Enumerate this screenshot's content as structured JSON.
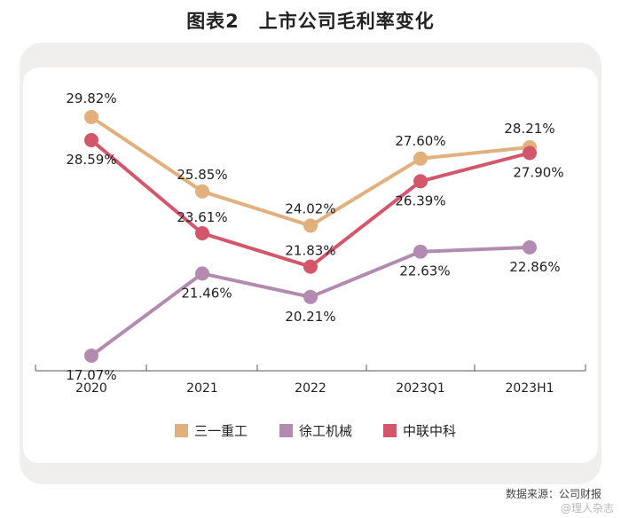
{
  "title": "图表2　上市公司毛利率变化",
  "source": "数据来源：公司财报",
  "watermark": "@理人杂志",
  "chart_data": {
    "type": "line",
    "categories": [
      "2020",
      "2021",
      "2022",
      "2023Q1",
      "2023H1"
    ],
    "ylim": [
      15,
      32
    ],
    "grid": false,
    "legend_position": "bottom-center",
    "series": [
      {
        "name": "三一重工",
        "color": "#e2b07c",
        "values": [
          29.82,
          25.85,
          24.02,
          27.6,
          28.21
        ],
        "labels": [
          "29.82%",
          "25.85%",
          "24.02%",
          "27.60%",
          "28.21%"
        ]
      },
      {
        "name": "徐工机械",
        "color": "#b48bb0",
        "values": [
          17.07,
          21.46,
          20.21,
          22.63,
          22.86
        ],
        "labels": [
          "17.07%",
          "21.46%",
          "20.21%",
          "22.63%",
          "22.86%"
        ]
      },
      {
        "name": "中联中科",
        "color": "#d4566b",
        "values": [
          28.59,
          23.61,
          21.83,
          26.39,
          27.9
        ],
        "labels": [
          "28.59%",
          "23.61%",
          "21.83%",
          "26.39%",
          "27.90%"
        ]
      }
    ]
  }
}
